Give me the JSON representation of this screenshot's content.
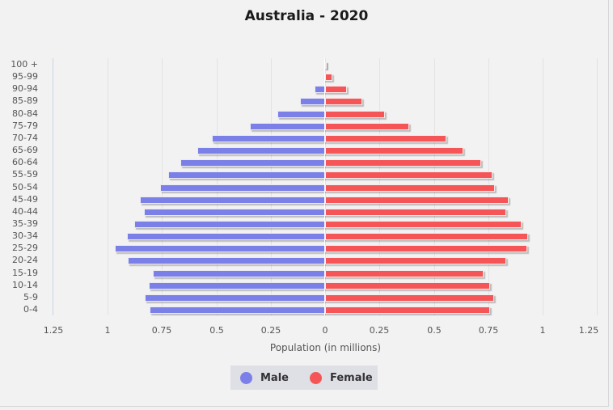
{
  "chart_data": {
    "type": "bar",
    "orientation": "horizontal",
    "subtype": "population-pyramid",
    "title": "Australia - 2020",
    "xlabel": "Population (in millions)",
    "ylabel": "",
    "xlim": [
      -1.25,
      1.25
    ],
    "x_ticks": [
      "1.25",
      "1",
      "0.75",
      "0.5",
      "0.25",
      "0",
      "0.25",
      "0.5",
      "0.75",
      "1",
      "1.25"
    ],
    "grid": true,
    "legend_position": "bottom",
    "categories": [
      "100 +",
      "95-99",
      "90-94",
      "85-89",
      "80-84",
      "75-79",
      "70-74",
      "65-69",
      "60-64",
      "55-59",
      "50-54",
      "45-49",
      "40-44",
      "35-39",
      "30-34",
      "25-29",
      "20-24",
      "15-19",
      "10-14",
      "5-9",
      "0-4"
    ],
    "series": [
      {
        "name": "Male",
        "color": "#7b7fe8",
        "values": [
          0.001,
          0.007,
          0.048,
          0.115,
          0.219,
          0.344,
          0.519,
          0.589,
          0.667,
          0.722,
          0.759,
          0.852,
          0.833,
          0.878,
          0.911,
          0.967,
          0.907,
          0.793,
          0.811,
          0.83,
          0.807
        ]
      },
      {
        "name": "Female",
        "color": "#f55556",
        "values": [
          0.004,
          0.033,
          0.1,
          0.17,
          0.274,
          0.385,
          0.556,
          0.637,
          0.719,
          0.77,
          0.781,
          0.844,
          0.833,
          0.904,
          0.933,
          0.93,
          0.833,
          0.73,
          0.759,
          0.778,
          0.759
        ]
      }
    ]
  },
  "legend": {
    "male_label": "Male",
    "female_label": "Female"
  }
}
